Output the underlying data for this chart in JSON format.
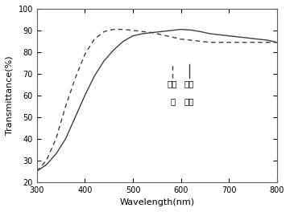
{
  "title": "",
  "xlabel": "Wavelength(nm)",
  "ylabel": "Transmittance(%)",
  "xlim": [
    300,
    800
  ],
  "ylim": [
    20,
    100
  ],
  "xticks": [
    300,
    400,
    500,
    600,
    700,
    800
  ],
  "yticks": [
    20,
    30,
    40,
    50,
    60,
    70,
    80,
    90,
    100
  ],
  "solid_x": [
    300,
    320,
    340,
    360,
    380,
    400,
    420,
    440,
    460,
    480,
    500,
    520,
    540,
    560,
    580,
    600,
    620,
    640,
    660,
    680,
    700,
    720,
    740,
    760,
    780,
    800
  ],
  "solid_y": [
    25,
    28,
    33,
    40,
    50,
    60,
    69,
    76,
    81,
    85,
    87.5,
    88.5,
    89,
    89.5,
    90,
    90.5,
    90.2,
    89.5,
    88.5,
    88,
    87.5,
    87,
    86.5,
    86,
    85.5,
    84.5
  ],
  "dashed_x": [
    300,
    320,
    340,
    360,
    380,
    400,
    420,
    440,
    460,
    480,
    500,
    520,
    540,
    560,
    580,
    600,
    620,
    640,
    660,
    680,
    700,
    720,
    740,
    760,
    780,
    800
  ],
  "dashed_y": [
    25,
    30,
    40,
    55,
    68,
    79,
    86,
    89.5,
    90.5,
    90.5,
    90,
    89.5,
    89,
    88,
    87,
    86,
    85.5,
    85,
    84.5,
    84.5,
    84.5,
    84.5,
    84.5,
    84.5,
    84.5,
    84.5
  ],
  "legend_solid_label": "源漏电极",
  "legend_dashed_label": "有源层",
  "line_color": "#404040",
  "bg_color": "#ffffff"
}
